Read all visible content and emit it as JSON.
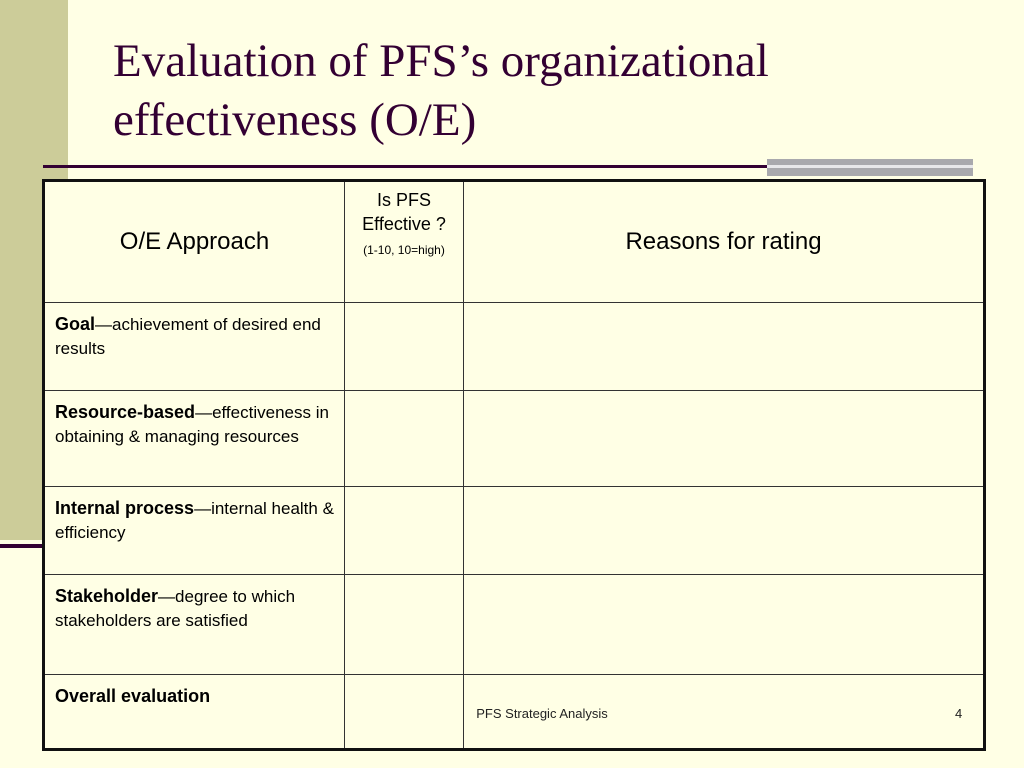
{
  "slide": {
    "title": "Evaluation of PFS’s organizational\neffectiveness (O/E)",
    "footer": "PFS Strategic Analysis",
    "page_number": "4"
  },
  "table": {
    "headers": {
      "approach": "O/E Approach",
      "effective": "Is PFS Effective ?",
      "effective_scale": "(1-10, 10=high)",
      "reasons": "Reasons for rating"
    },
    "rows": [
      {
        "name": "Goal",
        "desc": "—achievement of desired end results",
        "rating": "",
        "reasons": ""
      },
      {
        "name": "Resource-based",
        "desc": "—effectiveness in obtaining & managing resources",
        "rating": "",
        "reasons": ""
      },
      {
        "name": "Internal process",
        "desc": "—internal health & efficiency",
        "rating": "",
        "reasons": ""
      },
      {
        "name": "Stakeholder",
        "desc": "—degree to which stakeholders are satisfied",
        "rating": "",
        "reasons": ""
      },
      {
        "name": "Overall evaluation",
        "desc": "",
        "rating": "",
        "reasons": ""
      }
    ]
  },
  "colors": {
    "background": "#FFFFE5",
    "left_bar": "#CCCC99",
    "title": "#330033",
    "accent_bar": "#A9A9AD"
  }
}
